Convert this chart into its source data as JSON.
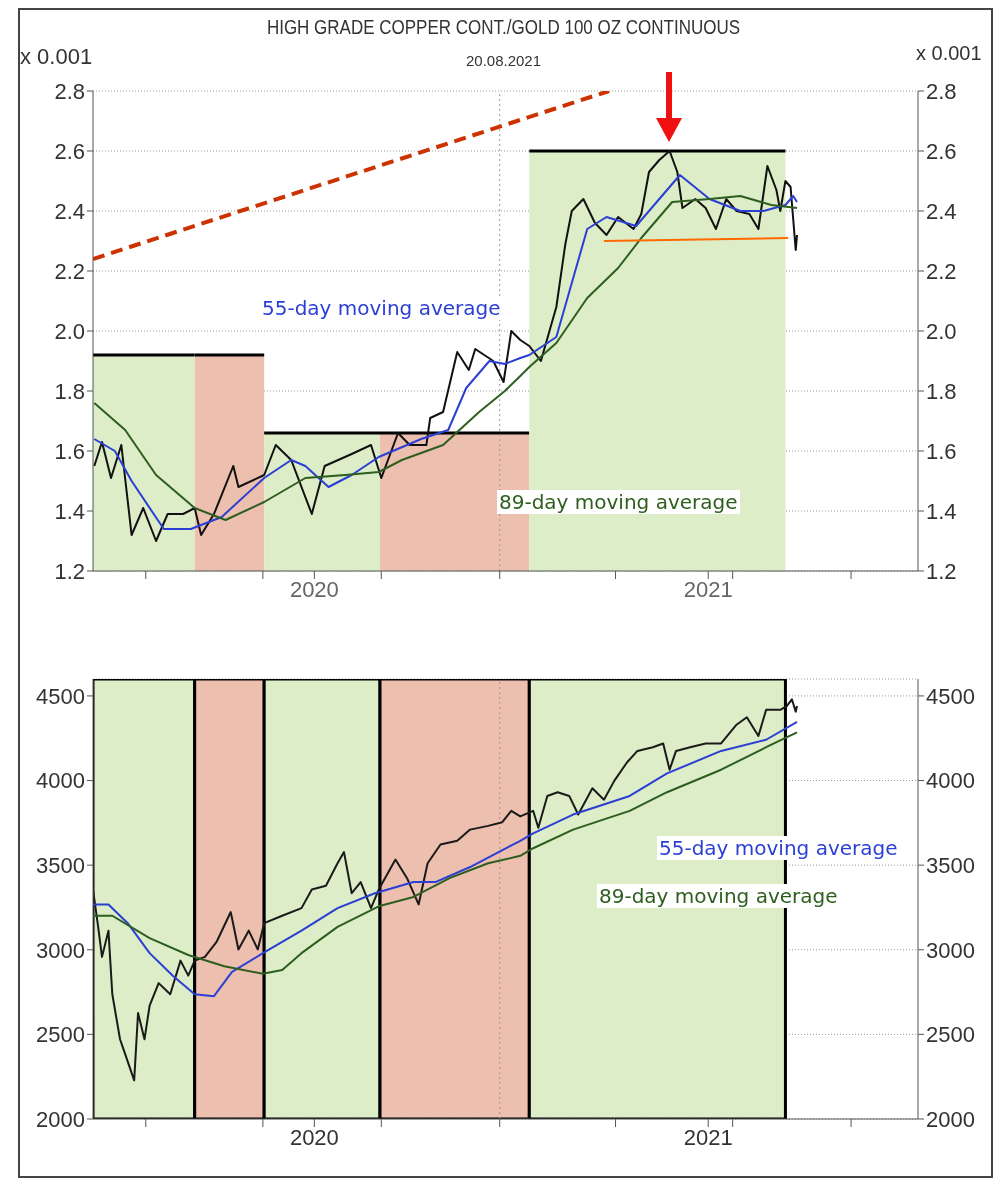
{
  "chart_data": [
    {
      "type": "line",
      "title": "HIGH GRADE COPPER CONT./GOLD 100 OZ CONTINUOUS",
      "subtitle": "20.08.2021",
      "ylabel": "x 0.001",
      "y2label": "x 0.001",
      "xlim": [
        "2020-02-20",
        "2021-11-22"
      ],
      "xticks": [
        {
          "value": "2020-04-01",
          "label": null
        },
        {
          "value": "2020-07-01",
          "label": null
        },
        {
          "value": "2020-08-10",
          "label": "2020"
        },
        {
          "value": "2020-10-01",
          "label": null
        },
        {
          "value": "2021-01-01",
          "label": null
        },
        {
          "value": "2021-04-01",
          "label": null
        },
        {
          "value": "2021-06-12",
          "label": "2021"
        },
        {
          "value": "2021-07-01",
          "label": null
        },
        {
          "value": "2021-10-01",
          "label": null
        }
      ],
      "ylim": [
        1.2,
        2.8
      ],
      "yticks": [
        1.2,
        1.4,
        1.6,
        1.8,
        {
          "value": 2,
          "label": "2.0"
        },
        2.2,
        2.4,
        2.6,
        2.8
      ],
      "y2lim": [
        1.2,
        2.8
      ],
      "y2ticks": [
        1.2,
        1.4,
        1.6,
        1.8,
        {
          "value": 2,
          "label": "2.0"
        },
        2.2,
        2.4,
        2.6,
        2.8
      ],
      "grid": "y",
      "legend": false,
      "ref_lines": [
        {
          "axis": "x",
          "value": "2021-01-01",
          "line_style": "dotted",
          "color": "#999999"
        }
      ],
      "series": [
        {
          "type": "area",
          "color": "#dcedc8",
          "x": [
            "2020-02-20",
            "2020-05-09"
          ],
          "values": [
            1.92,
            1.92
          ]
        },
        {
          "type": "area",
          "color": "#edbfae",
          "x": [
            "2020-05-09",
            "2020-07-02"
          ],
          "values": [
            1.92,
            1.92
          ]
        },
        {
          "type": "area",
          "color": "#dcedc8",
          "x": [
            "2020-07-02",
            "2020-09-30"
          ],
          "values": [
            1.66,
            1.66
          ]
        },
        {
          "type": "area",
          "color": "#edbfae",
          "x": [
            "2020-09-30",
            "2021-01-24"
          ],
          "values": [
            1.66,
            1.66
          ]
        },
        {
          "type": "area",
          "color": "#dcedc8",
          "x": [
            "2021-01-24",
            "2021-08-11"
          ],
          "values": [
            2.6,
            2.6
          ]
        },
        {
          "color": "#111111",
          "x": [
            "2020-02-21",
            "2020-02-27",
            "2020-03-05",
            "2020-03-13",
            "2020-03-21",
            "2020-03-30",
            "2020-04-09",
            "2020-04-18",
            "2020-04-30",
            "2020-05-09",
            "2020-05-14",
            "2020-05-24",
            "2020-06-08",
            "2020-06-12",
            "2020-07-02",
            "2020-07-11",
            "2020-07-23",
            "2020-08-08",
            "2020-08-18",
            "2020-09-08",
            "2020-09-23",
            "2020-10-01",
            "2020-10-14",
            "2020-10-23",
            "2020-11-05",
            "2020-11-08",
            "2020-11-18",
            "2020-11-29",
            "2020-12-08",
            "2020-12-13",
            "2020-12-27",
            "2021-01-04",
            "2021-01-10",
            "2021-01-17",
            "2021-01-24",
            "2021-02-02",
            "2021-02-14",
            "2021-02-21",
            "2021-02-26",
            "2021-03-07",
            "2021-03-16",
            "2021-03-25",
            "2021-04-03",
            "2021-04-15",
            "2021-04-21",
            "2021-04-27",
            "2021-05-05",
            "2021-05-13",
            "2021-05-19",
            "2021-05-23",
            "2021-06-02",
            "2021-06-10",
            "2021-06-18",
            "2021-06-26",
            "2021-07-04",
            "2021-07-14",
            "2021-07-21",
            "2021-07-28",
            "2021-08-04",
            "2021-08-07",
            "2021-08-11",
            "2021-08-15",
            "2021-08-19",
            "2021-08-20"
          ],
          "values": [
            1.55,
            1.63,
            1.51,
            1.62,
            1.32,
            1.41,
            1.3,
            1.39,
            1.39,
            1.41,
            1.32,
            1.39,
            1.55,
            1.48,
            1.52,
            1.62,
            1.57,
            1.39,
            1.55,
            1.59,
            1.62,
            1.51,
            1.66,
            1.62,
            1.62,
            1.71,
            1.73,
            1.93,
            1.87,
            1.94,
            1.9,
            1.83,
            2.0,
            1.97,
            1.95,
            1.9,
            2.08,
            2.29,
            2.4,
            2.44,
            2.36,
            2.32,
            2.38,
            2.34,
            2.39,
            2.53,
            2.57,
            2.6,
            2.53,
            2.41,
            2.44,
            2.41,
            2.34,
            2.44,
            2.4,
            2.39,
            2.34,
            2.55,
            2.47,
            2.4,
            2.5,
            2.48,
            2.27,
            2.32
          ]
        },
        {
          "name": "55-day moving average",
          "color": "#2b3fd4",
          "x": [
            "2020-02-21",
            "2020-03-08",
            "2020-03-21",
            "2020-04-15",
            "2020-05-06",
            "2020-05-30",
            "2020-07-02",
            "2020-07-23",
            "2020-08-03",
            "2020-08-21",
            "2020-09-08",
            "2020-09-29",
            "2020-11-01",
            "2020-11-22",
            "2020-12-06",
            "2020-12-24",
            "2021-01-05",
            "2021-01-17",
            "2021-01-24",
            "2021-02-14",
            "2021-02-26",
            "2021-03-10",
            "2021-03-25",
            "2021-04-17",
            "2021-05-03",
            "2021-05-21",
            "2021-06-13",
            "2021-07-07",
            "2021-07-25",
            "2021-08-11",
            "2021-08-17",
            "2021-08-20"
          ],
          "values": [
            1.64,
            1.6,
            1.5,
            1.34,
            1.34,
            1.38,
            1.51,
            1.57,
            1.55,
            1.48,
            1.52,
            1.58,
            1.64,
            1.67,
            1.81,
            1.9,
            1.89,
            1.91,
            1.92,
            1.98,
            2.16,
            2.34,
            2.38,
            2.35,
            2.43,
            2.52,
            2.44,
            2.4,
            2.4,
            2.42,
            2.45,
            2.43
          ]
        },
        {
          "name": "89-day moving average",
          "color": "#2d5e1e",
          "x": [
            "2020-02-21",
            "2020-03-16",
            "2020-04-09",
            "2020-05-09",
            "2020-06-02",
            "2020-07-02",
            "2020-08-03",
            "2020-09-03",
            "2020-09-29",
            "2020-10-17",
            "2020-11-18",
            "2020-12-16",
            "2021-01-05",
            "2021-01-17",
            "2021-01-24",
            "2021-02-14",
            "2021-03-10",
            "2021-04-03",
            "2021-04-21",
            "2021-05-15",
            "2021-06-13",
            "2021-07-07",
            "2021-07-31",
            "2021-08-20"
          ],
          "values": [
            1.76,
            1.67,
            1.52,
            1.41,
            1.37,
            1.43,
            1.51,
            1.52,
            1.53,
            1.57,
            1.62,
            1.73,
            1.8,
            1.85,
            1.88,
            1.96,
            2.11,
            2.21,
            2.31,
            2.43,
            2.44,
            2.45,
            2.42,
            2.41
          ]
        },
        {
          "type": "line",
          "color": "#cc3300",
          "line_style": "dashed",
          "x": [
            "2020-02-20",
            "2021-03-27"
          ],
          "values": [
            2.24,
            2.8
          ]
        },
        {
          "type": "line",
          "color": "#ff6a00",
          "x": [
            "2021-03-23",
            "2021-08-13"
          ],
          "values": [
            2.3,
            2.31
          ]
        }
      ]
    },
    {
      "type": "line",
      "xlim": [
        "2020-02-20",
        "2021-11-22"
      ],
      "xticks": [
        {
          "value": "2020-04-01",
          "label": null
        },
        {
          "value": "2020-07-01",
          "label": null
        },
        {
          "value": "2020-08-10",
          "label": "2020"
        },
        {
          "value": "2020-10-01",
          "label": null
        },
        {
          "value": "2021-01-01",
          "label": null
        },
        {
          "value": "2021-04-01",
          "label": null
        },
        {
          "value": "2021-06-12",
          "label": "2021"
        },
        {
          "value": "2021-07-01",
          "label": null
        },
        {
          "value": "2021-10-01",
          "label": null
        }
      ],
      "ylim": [
        2000,
        4600
      ],
      "yticks": [
        2000,
        2500,
        3000,
        3500,
        4000,
        4500
      ],
      "y2lim": [
        2000,
        4600
      ],
      "y2ticks": [
        2000,
        2500,
        3000,
        3500,
        4000,
        4500
      ],
      "grid": "y",
      "legend": false,
      "ref_lines": [
        {
          "axis": "x",
          "value": "2021-01-01",
          "line_style": "dotted",
          "color": "#999999"
        }
      ],
      "bands": [
        {
          "axis": "x",
          "from": "2020-02-20",
          "to": "2020-05-09",
          "color": "#dcedc8"
        },
        {
          "axis": "x",
          "from": "2020-05-09",
          "to": "2020-07-02",
          "color": "#edbfae"
        },
        {
          "axis": "x",
          "from": "2020-07-02",
          "to": "2020-09-30",
          "color": "#dcedc8"
        },
        {
          "axis": "x",
          "from": "2020-09-30",
          "to": "2021-01-24",
          "color": "#edbfae"
        },
        {
          "axis": "x",
          "from": "2021-01-24",
          "to": "2021-08-11",
          "color": "#dcedc8"
        }
      ],
      "series": [
        {
          "color": "#1a1a1a",
          "x": [
            "2020-02-20",
            "2020-02-24",
            "2020-02-27",
            "2020-03-03",
            "2020-03-06",
            "2020-03-12",
            "2020-03-16",
            "2020-03-23",
            "2020-03-26",
            "2020-03-31",
            "2020-04-04",
            "2020-04-11",
            "2020-04-20",
            "2020-04-28",
            "2020-05-04",
            "2020-05-09",
            "2020-05-17",
            "2020-05-26",
            "2020-06-06",
            "2020-06-12",
            "2020-06-20",
            "2020-06-27",
            "2020-07-02",
            "2020-07-16",
            "2020-07-31",
            "2020-08-08",
            "2020-08-19",
            "2020-08-28",
            "2020-09-02",
            "2020-09-08",
            "2020-09-15",
            "2020-09-23",
            "2020-09-29",
            "2020-10-12",
            "2020-10-21",
            "2020-10-30",
            "2020-11-06",
            "2020-11-16",
            "2020-11-29",
            "2020-12-09",
            "2020-12-23",
            "2021-01-03",
            "2021-01-10",
            "2021-01-17",
            "2021-01-27",
            "2021-01-31",
            "2021-02-07",
            "2021-02-15",
            "2021-02-24",
            "2021-03-03",
            "2021-03-14",
            "2021-03-23",
            "2021-03-31",
            "2021-04-10",
            "2021-04-18",
            "2021-04-30",
            "2021-05-08",
            "2021-05-13",
            "2021-05-18",
            "2021-05-29",
            "2021-06-10",
            "2021-06-22",
            "2021-07-04",
            "2021-07-12",
            "2021-07-21",
            "2021-07-27",
            "2021-08-07",
            "2021-08-12",
            "2021-08-16",
            "2021-08-19",
            "2021-08-20"
          ],
          "values": [
            3356,
            3135,
            2958,
            3113,
            2737,
            2471,
            2383,
            2228,
            2626,
            2471,
            2670,
            2803,
            2737,
            2936,
            2847,
            2936,
            2958,
            3046,
            3223,
            3002,
            3113,
            3002,
            3157,
            3201,
            3246,
            3356,
            3378,
            3511,
            3577,
            3334,
            3400,
            3246,
            3356,
            3533,
            3423,
            3268,
            3511,
            3622,
            3644,
            3710,
            3732,
            3754,
            3821,
            3788,
            3821,
            3721,
            3909,
            3931,
            3909,
            3799,
            3954,
            3887,
            3998,
            4108,
            4175,
            4197,
            4219,
            4064,
            4175,
            4197,
            4219,
            4219,
            4330,
            4374,
            4263,
            4418,
            4418,
            4440,
            4480,
            4407,
            4440
          ]
        },
        {
          "name": "55-day moving average",
          "color": "#2b3fd4",
          "x": [
            "2020-02-20",
            "2020-03-03",
            "2020-03-18",
            "2020-04-04",
            "2020-04-22",
            "2020-05-09",
            "2020-05-24",
            "2020-06-07",
            "2020-07-01",
            "2020-07-31",
            "2020-08-28",
            "2020-09-26",
            "2020-10-26",
            "2020-11-12",
            "2020-12-09",
            "2021-01-17",
            "2021-01-27",
            "2021-02-27",
            "2021-04-12",
            "2021-05-11",
            "2021-06-22",
            "2021-07-27",
            "2021-08-20"
          ],
          "values": [
            3268,
            3268,
            3157,
            2980,
            2847,
            2737,
            2726,
            2869,
            2980,
            3113,
            3246,
            3334,
            3400,
            3400,
            3489,
            3644,
            3688,
            3799,
            3909,
            4042,
            4175,
            4241,
            4347
          ]
        },
        {
          "name": "89-day moving average",
          "color": "#2d5e1e",
          "x": [
            "2020-02-20",
            "2020-03-06",
            "2020-04-04",
            "2020-05-04",
            "2020-06-01",
            "2020-07-01",
            "2020-07-16",
            "2020-07-31",
            "2020-08-28",
            "2020-09-29",
            "2020-10-26",
            "2020-11-23",
            "2020-12-23",
            "2021-01-17",
            "2021-01-27",
            "2021-02-27",
            "2021-04-12",
            "2021-05-11",
            "2021-06-22",
            "2021-07-27",
            "2021-08-20"
          ],
          "values": [
            3201,
            3201,
            3069,
            2969,
            2903,
            2858,
            2880,
            2980,
            3135,
            3257,
            3312,
            3423,
            3511,
            3555,
            3600,
            3710,
            3821,
            3931,
            4064,
            4197,
            4285
          ]
        }
      ]
    }
  ]
}
